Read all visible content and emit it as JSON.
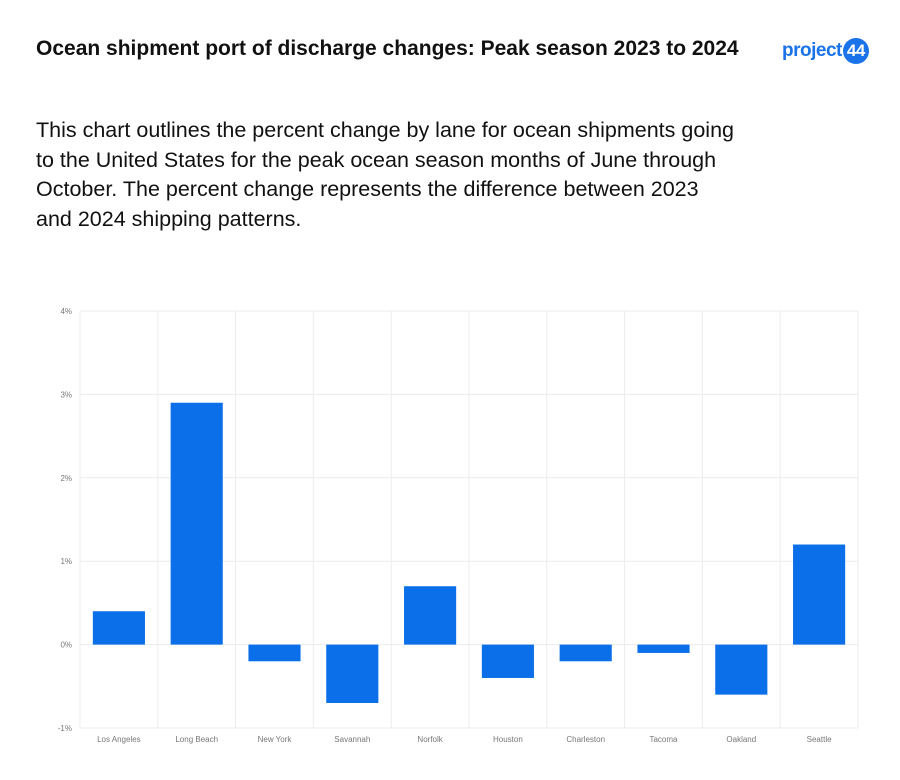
{
  "header": {
    "title": "Ocean shipment port of discharge changes: Peak season 2023 to 2024",
    "description": "This chart outlines the percent change by lane for ocean shipments going to the United States for the peak ocean season months of June through October. The percent change represents the difference between 2023 and 2024 shipping patterns."
  },
  "logo": {
    "text": "project",
    "badge": "44",
    "color": "#1a73e8"
  },
  "chart_data": {
    "type": "bar",
    "title": "",
    "xlabel": "",
    "ylabel": "",
    "categories": [
      "Los Angeles",
      "Long Beach",
      "New York",
      "Savannah",
      "Norfolk",
      "Houston",
      "Charleston",
      "Tacoma",
      "Oakland",
      "Seattle"
    ],
    "values": [
      0.4,
      2.9,
      -0.2,
      -0.7,
      0.7,
      -0.4,
      -0.2,
      -0.1,
      -0.6,
      1.2
    ],
    "ylim": [
      -1,
      4
    ],
    "yticks": [
      4,
      3,
      2,
      1,
      0,
      -1
    ],
    "ytick_labels": [
      "4%",
      "3%",
      "2%",
      "1%",
      "0%",
      "-1%"
    ],
    "grid": true,
    "bar_color": "#0a6fe8"
  }
}
